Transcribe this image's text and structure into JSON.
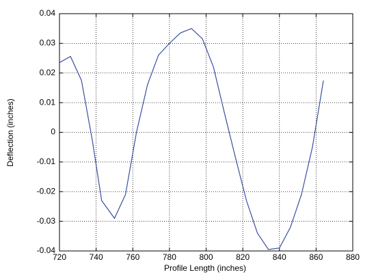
{
  "chart_data": {
    "type": "line",
    "xlabel": "Profile Length (inches)",
    "ylabel": "Deflection (inches)",
    "x": [
      720,
      726,
      732,
      738,
      743,
      750,
      756,
      762,
      768,
      774,
      780,
      786,
      792,
      798,
      804,
      810,
      816,
      822,
      828,
      834,
      840,
      846,
      852,
      858,
      864
    ],
    "series": [
      {
        "color": "#3a4fa0",
        "values": [
          0.0235,
          0.0256,
          0.0175,
          -0.003,
          -0.023,
          -0.029,
          -0.021,
          0.0,
          0.016,
          0.026,
          0.03,
          0.0335,
          0.035,
          0.0315,
          0.022,
          0.0065,
          -0.0085,
          -0.023,
          -0.034,
          -0.0395,
          -0.039,
          -0.032,
          -0.021,
          -0.005,
          0.0175
        ]
      }
    ],
    "xlim": [
      720,
      880
    ],
    "xticks": [
      720,
      740,
      760,
      780,
      800,
      820,
      840,
      860,
      880
    ],
    "ylim": [
      -0.04,
      0.04
    ],
    "yticks": [
      -0.04,
      -0.03,
      -0.02,
      -0.01,
      0,
      0.01,
      0.02,
      0.03,
      0.04
    ],
    "grid": true
  }
}
